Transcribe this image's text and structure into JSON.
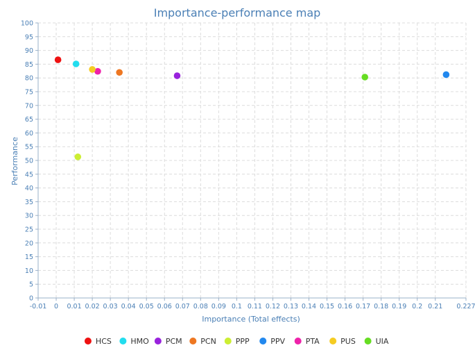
{
  "chart_data": {
    "type": "scatter",
    "title": "Importance-performance map",
    "xlabel": "Importance (Total effects)",
    "ylabel": "Performance",
    "xlim": [
      -0.01,
      0.227
    ],
    "ylim": [
      0,
      100
    ],
    "x_ticks": [
      "-0.01",
      "0",
      "0.01",
      "0.02",
      "0.03",
      "0.04",
      "0.05",
      "0.06",
      "0.07",
      "0.08",
      "0.09",
      "0.1",
      "0.11",
      "0.12",
      "0.13",
      "0.14",
      "0.15",
      "0.16",
      "0.17",
      "0.18",
      "0.19",
      "0.2",
      "0.21",
      "0.227"
    ],
    "y_ticks": [
      "0",
      "5",
      "10",
      "15",
      "20",
      "25",
      "30",
      "35",
      "40",
      "45",
      "50",
      "55",
      "60",
      "65",
      "70",
      "75",
      "80",
      "85",
      "90",
      "95",
      "100"
    ],
    "grid": true,
    "legend_position": "bottom",
    "series": [
      {
        "name": "HCS",
        "color": "#ee1111",
        "x": 0.001,
        "y": 86.6
      },
      {
        "name": "HMO",
        "color": "#22ddee",
        "x": 0.011,
        "y": 85.1
      },
      {
        "name": "PCM",
        "color": "#9922dd",
        "x": 0.067,
        "y": 80.8
      },
      {
        "name": "PCN",
        "color": "#ee7722",
        "x": 0.035,
        "y": 82.0
      },
      {
        "name": "PPP",
        "color": "#ccee33",
        "x": 0.012,
        "y": 51.3
      },
      {
        "name": "PPV",
        "color": "#2288ee",
        "x": 0.216,
        "y": 81.2
      },
      {
        "name": "PTA",
        "color": "#ee22aa",
        "x": 0.023,
        "y": 82.4
      },
      {
        "name": "PUS",
        "color": "#f5cc22",
        "x": 0.02,
        "y": 83.1
      },
      {
        "name": "UIA",
        "color": "#66dd22",
        "x": 0.171,
        "y": 80.3
      }
    ]
  }
}
